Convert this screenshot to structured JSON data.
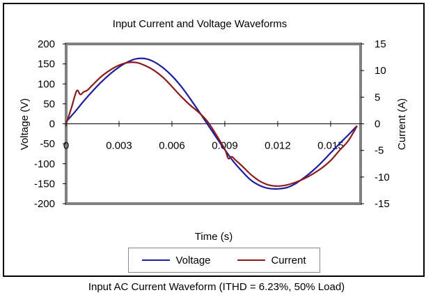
{
  "chart_data": {
    "type": "line",
    "title": "Input Current and Voltage Waveforms",
    "xlabel": "Time (s)",
    "ylabel_left": "Voltage (V)",
    "ylabel_right": "Current (A)",
    "xlim": [
      0,
      0.0167
    ],
    "ylim_left": [
      -200,
      200
    ],
    "ylim_right": [
      -15,
      15
    ],
    "x_ticks": [
      "0",
      "0.003",
      "0.006",
      "0.009",
      "0.012",
      "0.015"
    ],
    "x_tick_values": [
      0,
      0.003,
      0.006,
      0.009,
      0.012,
      0.015
    ],
    "y_ticks_left": [
      "200",
      "150",
      "100",
      "50",
      "0",
      "-50",
      "-100",
      "-150",
      "-200"
    ],
    "y_tick_values_left": [
      200,
      150,
      100,
      50,
      0,
      -50,
      -100,
      -150,
      -200
    ],
    "y_ticks_right": [
      "15",
      "10",
      "5",
      "0",
      "-5",
      "-10",
      "-15"
    ],
    "y_tick_values_right": [
      15,
      10,
      5,
      0,
      -5,
      -10,
      -15
    ],
    "grid": false,
    "legend_position": "bottom",
    "series": [
      {
        "name": "Voltage",
        "axis": "left",
        "color": "#1c1c9c",
        "x": [
          0,
          0.0005,
          0.001,
          0.0015,
          0.002,
          0.0025,
          0.003,
          0.0035,
          0.004,
          0.0045,
          0.005,
          0.0055,
          0.006,
          0.0065,
          0.007,
          0.0075,
          0.008,
          0.0085,
          0.009,
          0.0095,
          0.01,
          0.0105,
          0.011,
          0.0115,
          0.012,
          0.0125,
          0.013,
          0.0135,
          0.014,
          0.0145,
          0.015,
          0.0155,
          0.016,
          0.0165
        ],
        "y": [
          5,
          30,
          57,
          82,
          105,
          125,
          142,
          155,
          163,
          163,
          155,
          140,
          120,
          95,
          65,
          33,
          0,
          -33,
          -65,
          -95,
          -120,
          -142,
          -155,
          -162,
          -163,
          -160,
          -150,
          -135,
          -117,
          -96,
          -73,
          -50,
          -28,
          -5
        ]
      },
      {
        "name": "Current",
        "axis": "right",
        "color": "#8b1a1a",
        "x": [
          0,
          0.0003,
          0.0006,
          0.0008,
          0.001,
          0.0012,
          0.0015,
          0.002,
          0.0025,
          0.003,
          0.0035,
          0.004,
          0.0045,
          0.005,
          0.0055,
          0.006,
          0.0065,
          0.007,
          0.0075,
          0.008,
          0.0085,
          0.009,
          0.0092,
          0.0094,
          0.0096,
          0.01,
          0.0105,
          0.011,
          0.0115,
          0.012,
          0.0125,
          0.013,
          0.0135,
          0.014,
          0.0145,
          0.015,
          0.0155,
          0.016,
          0.0165
        ],
        "y": [
          0,
          3,
          6.2,
          5.5,
          6,
          6.3,
          7.3,
          8.9,
          10.1,
          11,
          11.5,
          11.5,
          10.9,
          10,
          8.7,
          7,
          5.2,
          3.6,
          2.2,
          0.5,
          -2,
          -4.8,
          -6.5,
          -6.2,
          -6.8,
          -8,
          -9.6,
          -10.8,
          -11.5,
          -11.7,
          -11.5,
          -11,
          -10.3,
          -9.4,
          -8.3,
          -6.9,
          -5,
          -3.2,
          -0.4
        ]
      }
    ]
  },
  "caption": "Input AC Current Waveform (ITHD = 6.23%, 50% Load)"
}
